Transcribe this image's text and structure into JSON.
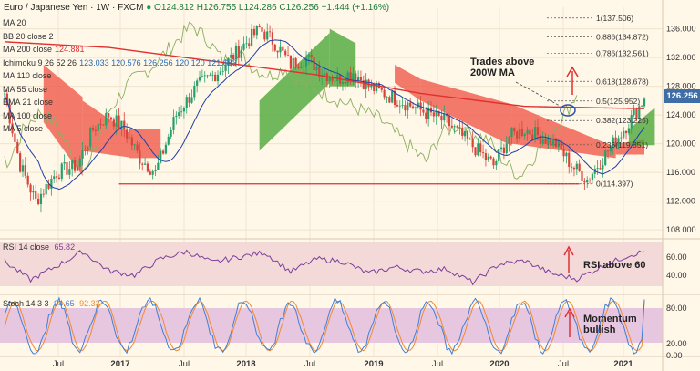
{
  "header": {
    "symbol": "Euro / Japanese Yen",
    "interval": "1W",
    "source": "FXCM",
    "open": "O124.812",
    "high": "H126.755",
    "low": "L124.286",
    "close": "C126.256",
    "change": "+1.444 (+1.16%)"
  },
  "main_legend": [
    {
      "label": "MA 20",
      "values": ""
    },
    {
      "label": "BB 20 close 2",
      "values": ""
    },
    {
      "label": "MA 200 close",
      "values": "124.881",
      "color": "#e03030"
    },
    {
      "label": "Ichimoku 9 26 52 26",
      "values": "123.033  120.576  126.256  120.120  121.683"
    },
    {
      "label": "MA 110 close",
      "values": ""
    },
    {
      "label": "MA 55 close",
      "values": ""
    },
    {
      "label": "EMA 21 close",
      "values": ""
    },
    {
      "label": "MA 100 close",
      "values": ""
    },
    {
      "label": "MA 5 close",
      "values": ""
    }
  ],
  "price_axis": {
    "ticks": [
      "136.000",
      "132.000",
      "128.000",
      "124.000",
      "120.000",
      "116.000",
      "112.000",
      "108.000"
    ],
    "current_price": "126.256",
    "current_color": "#3f6da6"
  },
  "fib_levels": [
    {
      "ratio": "1(137.506)",
      "price": 137.506
    },
    {
      "ratio": "0.886(134.872)",
      "price": 134.872
    },
    {
      "ratio": "0.786(132.561)",
      "price": 132.561
    },
    {
      "ratio": "0.618(128.678)",
      "price": 128.678
    },
    {
      "ratio": "0.5(125.952)",
      "price": 125.952
    },
    {
      "ratio": "0.382(123.225)",
      "price": 123.225
    },
    {
      "ratio": "0.236(119.851)",
      "price": 119.851
    },
    {
      "ratio": "0(114.397)",
      "price": 114.397
    }
  ],
  "time_axis": [
    "Jul",
    "2017",
    "Jul",
    "2018",
    "Jul",
    "2019",
    "Jul",
    "2020",
    "Jul",
    "2021"
  ],
  "annotations": {
    "trades_above": "Trades above\n200W MA",
    "rsi_note": "RSI above 60",
    "stoch_note": "Momentum\nbullish"
  },
  "rsi": {
    "label": "RSI 14 close",
    "value": "65.82",
    "ticks": [
      "60.00",
      "40.00"
    ],
    "color": "#7b3f99"
  },
  "stoch": {
    "label": "Stoch 14 3 3",
    "k": "94.65",
    "d": "92.33",
    "ticks": [
      "80.00",
      "20.00",
      "0.00"
    ],
    "k_color": "#3f7fd8",
    "d_color": "#f08a30"
  },
  "colors": {
    "background": "#fff7e8",
    "cloud_bull": "#4ea83a",
    "cloud_bear": "#f05a4a",
    "ma200": "#e03030",
    "kijun": "#1f3fa8",
    "lagging": "#8ab060",
    "support_line": "#e03030",
    "arrow": "#e03030"
  },
  "chart_data": {
    "type": "candlestick",
    "title": "Euro / Japanese Yen, 1W, FXCM",
    "ylim": [
      107,
      139
    ],
    "support": 114.4,
    "x_labels": [
      "Jul",
      "2017",
      "Jul",
      "2018",
      "Jul",
      "2019",
      "Jul",
      "2020",
      "Jul",
      "2021"
    ],
    "price_path": [
      [
        0,
        127
      ],
      [
        6,
        117
      ],
      [
        12,
        112
      ],
      [
        20,
        116
      ],
      [
        28,
        117
      ],
      [
        34,
        122
      ],
      [
        40,
        124
      ],
      [
        46,
        122
      ],
      [
        52,
        118
      ],
      [
        58,
        116
      ],
      [
        66,
        124
      ],
      [
        74,
        128
      ],
      [
        82,
        130
      ],
      [
        90,
        133
      ],
      [
        98,
        136
      ],
      [
        104,
        134
      ],
      [
        110,
        131
      ],
      [
        116,
        132
      ],
      [
        122,
        130
      ],
      [
        128,
        129
      ],
      [
        134,
        130
      ],
      [
        140,
        128
      ],
      [
        146,
        127
      ],
      [
        152,
        126
      ],
      [
        158,
        125
      ],
      [
        164,
        124
      ],
      [
        170,
        123
      ],
      [
        176,
        121
      ],
      [
        182,
        119
      ],
      [
        188,
        117
      ],
      [
        194,
        121
      ],
      [
        200,
        122
      ],
      [
        206,
        121
      ],
      [
        212,
        120
      ],
      [
        218,
        117
      ],
      [
        224,
        115
      ],
      [
        230,
        118
      ],
      [
        236,
        121
      ],
      [
        242,
        124
      ],
      [
        246,
        126.3
      ]
    ],
    "ma200_path": [
      [
        0,
        134.2
      ],
      [
        40,
        133.4
      ],
      [
        80,
        131.5
      ],
      [
        120,
        129.6
      ],
      [
        160,
        127.0
      ],
      [
        200,
        125.2
      ],
      [
        246,
        124.88
      ]
    ],
    "rsi_path": [
      [
        0,
        55
      ],
      [
        10,
        35
      ],
      [
        20,
        50
      ],
      [
        30,
        66
      ],
      [
        40,
        45
      ],
      [
        50,
        40
      ],
      [
        60,
        58
      ],
      [
        70,
        66
      ],
      [
        80,
        54
      ],
      [
        90,
        60
      ],
      [
        100,
        65
      ],
      [
        110,
        44
      ],
      [
        120,
        58
      ],
      [
        130,
        55
      ],
      [
        140,
        42
      ],
      [
        150,
        49
      ],
      [
        160,
        44
      ],
      [
        170,
        47
      ],
      [
        180,
        32
      ],
      [
        190,
        52
      ],
      [
        200,
        56
      ],
      [
        210,
        42
      ],
      [
        220,
        36
      ],
      [
        230,
        50
      ],
      [
        240,
        62
      ],
      [
        246,
        65.82
      ]
    ]
  }
}
